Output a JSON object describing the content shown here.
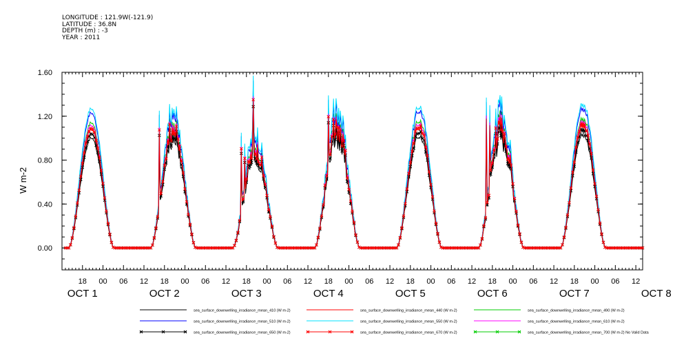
{
  "header": {
    "longitude": "LONGITUDE : 121.9W(-121.9)",
    "latitude": "LATITUDE : 36.8N",
    "depth": "DEPTH (m) : -3",
    "year": "YEAR : 2011"
  },
  "chart_data": {
    "type": "line",
    "ylabel": "W m-2",
    "ylim": [
      -0.2,
      1.6
    ],
    "yticks": [
      {
        "value": 0.0,
        "label": "0.00"
      },
      {
        "value": 0.4,
        "label": "0.40"
      },
      {
        "value": 0.8,
        "label": "0.80"
      },
      {
        "value": 1.2,
        "label": "1.20"
      },
      {
        "value": 1.6,
        "label": "1.60"
      }
    ],
    "xlim_hours": [
      12,
      182
    ],
    "xtick_labels": [
      "18",
      "00",
      "06",
      "12",
      "18",
      "00",
      "06",
      "12",
      "18",
      "00",
      "06",
      "12",
      "18",
      "00",
      "06",
      "12",
      "18",
      "00",
      "06",
      "12",
      "18",
      "00",
      "06",
      "12",
      "18",
      "00",
      "06",
      "12"
    ],
    "date_labels": [
      "OCT 1",
      "OCT 2",
      "OCT 3",
      "OCT 4",
      "OCT 5",
      "OCT 6",
      "OCT 7",
      "OCT 8"
    ],
    "grid": false,
    "legend_position": "bottom",
    "series": [
      {
        "name": "sea_surface_downwelling_irradiance_mean_410 (W m-2)",
        "color": "#000000",
        "scale": 0.79,
        "marker": "none"
      },
      {
        "name": "sea_surface_downwelling_irradiance_mean_440 (W m-2)",
        "color": "#ff0000",
        "scale": 0.85,
        "marker": "none"
      },
      {
        "name": "sea_surface_downwelling_irradiance_mean_490 (W m-2)",
        "color": "#00cc00",
        "scale": 0.9,
        "marker": "none"
      },
      {
        "name": "sea_surface_downwelling_irradiance_mean_510 (W m-2)",
        "color": "#0000ff",
        "scale": 0.97,
        "marker": "none"
      },
      {
        "name": "sea_surface_downwelling_irradiance_mean_550 (W m-2)",
        "color": "#00e0ff",
        "scale": 1.0,
        "marker": "none"
      },
      {
        "name": "sea_surface_downwelling_irradiance_mean_610 (W m-2)",
        "color": "#ff00ff",
        "scale": 0.88,
        "marker": "none"
      },
      {
        "name": "sea_surface_downwelling_irradiance_mean_650 (W m-2)",
        "color": "#000000",
        "scale": 0.82,
        "marker": "x"
      },
      {
        "name": "sea_surface_downwelling_irradiance_mean_670 (W m-2)",
        "color": "#ff0000",
        "scale": 0.86,
        "marker": "x"
      },
      {
        "name": "sea_surface_downwelling_irradiance_mean_700 (W m-2) No Valid Data",
        "color": "#00cc00",
        "scale": 0,
        "marker": "x"
      }
    ],
    "days": [
      {
        "peak_hour": 20.6,
        "peak": 1.27,
        "noise": 0.03,
        "spikes": []
      },
      {
        "peak_hour": 44.6,
        "peak": 1.22,
        "noise": 0.12,
        "spikes": [
          {
            "h": 40.5,
            "v": 1.25
          },
          {
            "h": 43.5,
            "v": 1.31
          },
          {
            "h": 45.5,
            "v": 1.29
          }
        ]
      },
      {
        "peak_hour": 68.6,
        "peak": 1.05,
        "noise": 0.2,
        "spikes": [
          {
            "h": 64.5,
            "v": 1.05
          },
          {
            "h": 65.5,
            "v": 0.95
          },
          {
            "h": 67.9,
            "v": 1.57
          }
        ]
      },
      {
        "peak_hour": 92.6,
        "peak": 1.25,
        "noise": 0.22,
        "spikes": [
          {
            "h": 90.0,
            "v": 1.39
          },
          {
            "h": 91.5,
            "v": 1.36
          },
          {
            "h": 93.5,
            "v": 1.25
          }
        ]
      },
      {
        "peak_hour": 116.6,
        "peak": 1.29,
        "noise": 0.06,
        "spikes": []
      },
      {
        "peak_hour": 140.6,
        "peak": 1.28,
        "noise": 0.25,
        "spikes": [
          {
            "h": 136.3,
            "v": 1.37
          },
          {
            "h": 137.3,
            "v": 1.3
          },
          {
            "h": 139.0,
            "v": 1.27
          },
          {
            "h": 141.5,
            "v": 1.21
          }
        ]
      },
      {
        "peak_hour": 164.6,
        "peak": 1.31,
        "noise": 0.05,
        "spikes": []
      }
    ]
  }
}
